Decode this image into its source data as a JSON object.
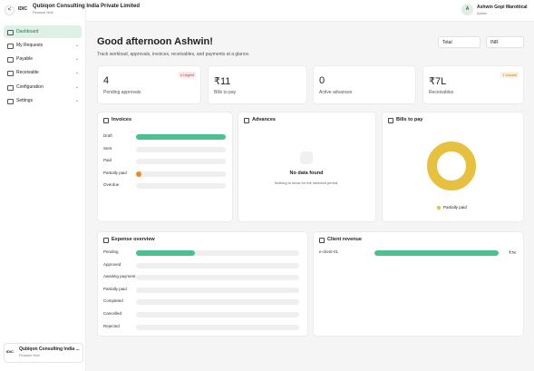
{
  "header": {
    "back": "<",
    "logo": "IDIC",
    "company": "Qubiqon Consulting India Private Limited",
    "app": "Finance Hub",
    "avatar": "A",
    "user": "Ashwin Gopi Marottical",
    "role": "Admin"
  },
  "sidebar": {
    "items": [
      "Dashboard",
      "My Requests",
      "Payable",
      "Receivable",
      "Configuration",
      "Settings"
    ],
    "org_logo": "IDIC",
    "org": "Qubiqon Consulting India ...",
    "org_app": "Finance Hub"
  },
  "greeting": "Good afternoon Ashwin!",
  "subtitle": "Track workload, approvals, invoices, receivables, and payments at a glance.",
  "filters": [
    "Total",
    "INR"
  ],
  "stats": [
    {
      "value": "4",
      "label": "Pending approvals",
      "badge": "4 Urgent"
    },
    {
      "value": "₹11",
      "label": "Bills to pay"
    },
    {
      "value": "0",
      "label": "Active advances"
    },
    {
      "value": "₹7L",
      "label": "Receivables",
      "badge": "1 Unpaid"
    }
  ],
  "invoices": {
    "title": "Invoices",
    "rows": [
      {
        "label": "Draft",
        "value": 100
      },
      {
        "label": "Sent",
        "value": 0
      },
      {
        "label": "Paid",
        "value": 0
      },
      {
        "label": "Partially paid",
        "value": 6
      },
      {
        "label": "Overdue",
        "value": 0
      }
    ]
  },
  "advances": {
    "title": "Advances",
    "empty": "No data found",
    "empty_note": "Nothing to show for the selected period."
  },
  "bills": {
    "title": "Bills to pay",
    "slices": [
      {
        "name": "Partially paid",
        "value": 100,
        "color": "#e6c03e"
      }
    ]
  },
  "expense": {
    "title": "Expense overview",
    "rows": [
      {
        "label": "Pending",
        "value": 36
      },
      {
        "label": "Approved",
        "value": 0
      },
      {
        "label": "Awaiting payment",
        "value": 0
      },
      {
        "label": "Partially paid",
        "value": 0
      },
      {
        "label": "Completed",
        "value": 0
      },
      {
        "label": "Cancelled",
        "value": 0
      },
      {
        "label": "Rejected",
        "value": 0
      }
    ]
  },
  "revenue": {
    "title": "Client revenue",
    "rows": [
      {
        "label": "e-client-01",
        "value": 100,
        "amount": "₹7K"
      }
    ]
  }
}
